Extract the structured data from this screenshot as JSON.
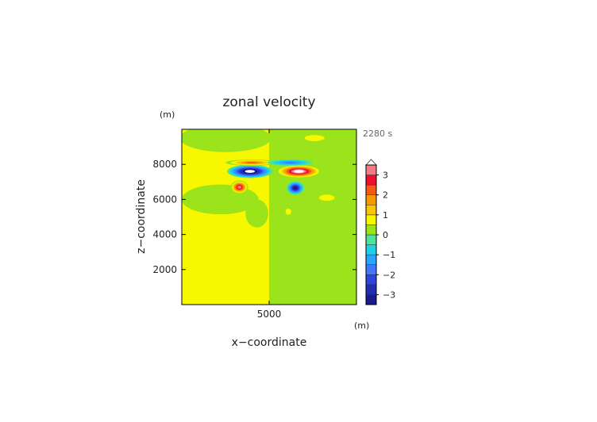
{
  "chart_data": {
    "type": "heatmap",
    "title": "zonal velocity",
    "xlabel": "x−coordinate",
    "ylabel": "z−coordinate",
    "x_unit": "(m)",
    "y_unit": "(m)",
    "time_label": "2280 s",
    "xlim": [
      0,
      10000
    ],
    "ylim": [
      0,
      10000
    ],
    "x_ticks": [
      {
        "value": 5000,
        "label": "5000"
      }
    ],
    "y_ticks": [
      {
        "value": 2000,
        "label": "2000"
      },
      {
        "value": 4000,
        "label": "4000"
      },
      {
        "value": 6000,
        "label": "6000"
      },
      {
        "value": 8000,
        "label": "8000"
      }
    ],
    "colorbar": {
      "min": -3.5,
      "max": 3.5,
      "levels": [
        {
          "from": -3.5,
          "to": -3.0,
          "color": "#1a1a8a"
        },
        {
          "from": -3.0,
          "to": -2.5,
          "color": "#1f2fb0"
        },
        {
          "from": -2.5,
          "to": -2.0,
          "color": "#2c44e0"
        },
        {
          "from": -2.0,
          "to": -1.5,
          "color": "#3f78ff"
        },
        {
          "from": -1.5,
          "to": -1.0,
          "color": "#2aa4ff"
        },
        {
          "from": -1.0,
          "to": -0.5,
          "color": "#1fd0e8"
        },
        {
          "from": -0.5,
          "to": 0.0,
          "color": "#4ee39a"
        },
        {
          "from": 0.0,
          "to": 0.5,
          "color": "#9be41c"
        },
        {
          "from": 0.5,
          "to": 1.0,
          "color": "#f7f700"
        },
        {
          "from": 1.0,
          "to": 1.5,
          "color": "#f9c600"
        },
        {
          "from": 1.5,
          "to": 2.0,
          "color": "#f79a00"
        },
        {
          "from": 2.0,
          "to": 2.5,
          "color": "#f35a14"
        },
        {
          "from": 2.5,
          "to": 3.0,
          "color": "#ee0f2a"
        },
        {
          "from": 3.0,
          "to": 3.5,
          "color": "#f77a86"
        }
      ],
      "tick_labels": [
        {
          "value": 3,
          "label": "3"
        },
        {
          "value": 2,
          "label": "2"
        },
        {
          "value": 1,
          "label": "1"
        },
        {
          "value": 0,
          "label": "0"
        },
        {
          "value": -1,
          "label": "−1"
        },
        {
          "value": -2,
          "label": "−2"
        },
        {
          "value": -3,
          "label": "−3"
        }
      ]
    },
    "field": {
      "background_left": 0.7,
      "background_right": 0.2,
      "features": [
        {
          "name": "upper-band-left",
          "x": 2500,
          "z": 9500,
          "rx": 2600,
          "rz": 800,
          "value": 0.2
        },
        {
          "name": "upper-band-right",
          "x": 7600,
          "z": 9500,
          "rx": 2600,
          "rz": 800,
          "value": 0.7
        },
        {
          "name": "wake-left",
          "x": 2200,
          "z": 6000,
          "rx": 2200,
          "rz": 850,
          "value": 0.2
        },
        {
          "name": "wake-right",
          "x": 8300,
          "z": 6100,
          "rx": 2000,
          "rz": 800,
          "value": 0.7
        },
        {
          "name": "lobe-left",
          "x": 4300,
          "z": 5200,
          "rx": 650,
          "rz": 800,
          "value": 0.2
        },
        {
          "name": "lobe-right",
          "x": 6100,
          "z": 5300,
          "rx": 750,
          "rz": 800,
          "value": 0.7
        },
        {
          "name": "jet-left-core",
          "x": 3900,
          "z": 7600,
          "rx": 1300,
          "rz": 380,
          "value": -3.8
        },
        {
          "name": "jet-right-core",
          "x": 6700,
          "z": 7600,
          "rx": 1300,
          "rz": 380,
          "value": 3.8
        },
        {
          "name": "jet-left-top",
          "x": 4000,
          "z": 8100,
          "rx": 1500,
          "rz": 180,
          "value": 2.2
        },
        {
          "name": "jet-right-top",
          "x": 6200,
          "z": 8100,
          "rx": 1300,
          "rz": 180,
          "value": -1.6
        },
        {
          "name": "eddy-left",
          "x": 3300,
          "z": 6700,
          "rx": 500,
          "rz": 380,
          "value": 3.2
        },
        {
          "name": "eddy-right",
          "x": 6500,
          "z": 6650,
          "rx": 500,
          "rz": 380,
          "value": -3.0
        }
      ]
    }
  }
}
